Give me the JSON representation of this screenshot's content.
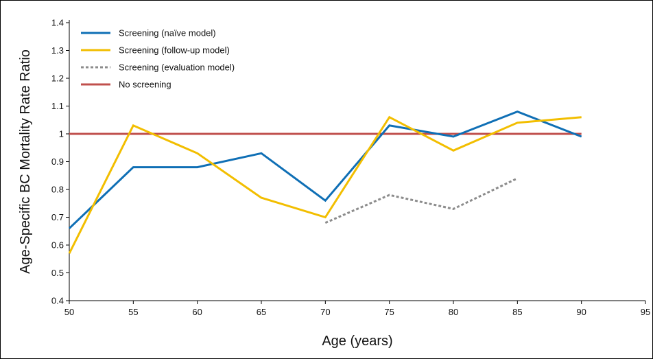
{
  "chart_data": {
    "type": "line",
    "title": "",
    "xlabel": "Age (years)",
    "ylabel": "Age-Specific BC Mortality Rate Ratio",
    "xlim": [
      50,
      95
    ],
    "ylim": [
      0.4,
      1.4
    ],
    "xticks": [
      50,
      55,
      60,
      65,
      70,
      75,
      80,
      85,
      90,
      95
    ],
    "xtick_labels": [
      "50",
      "55",
      "60",
      "65",
      "70",
      "75",
      "80",
      "85",
      "90",
      "95"
    ],
    "yticks": [
      0.4,
      0.5,
      0.6,
      0.7,
      0.8,
      0.9,
      1,
      1.1,
      1.2,
      1.3,
      1.4
    ],
    "ytick_labels": [
      "0.4",
      "0.5",
      "0.6",
      "0.7",
      "0.8",
      "0.9",
      "1",
      "1.1",
      "1.2",
      "1.3",
      "1.4"
    ],
    "grid": false,
    "legend_position": "top-left",
    "series": [
      {
        "name": "Screening (naïve model)",
        "color": "#0f6fb5",
        "style": "solid",
        "x": [
          50,
          55,
          60,
          65,
          70,
          75,
          80,
          85,
          90
        ],
        "y": [
          0.66,
          0.88,
          0.88,
          0.93,
          0.76,
          1.03,
          0.99,
          1.08,
          0.99
        ]
      },
      {
        "name": "Screening (follow-up model)",
        "color": "#f2be00",
        "style": "solid",
        "x": [
          50,
          55,
          60,
          65,
          70,
          75,
          80,
          85,
          90
        ],
        "y": [
          0.57,
          1.03,
          0.93,
          0.77,
          0.7,
          1.06,
          0.94,
          1.04,
          1.06
        ]
      },
      {
        "name": "Screening (evaluation model)",
        "color": "#8c8c8c",
        "style": "dotted",
        "x": [
          70,
          75,
          80,
          85
        ],
        "y": [
          0.68,
          0.78,
          0.73,
          0.84
        ]
      },
      {
        "name": "No screening",
        "color": "#c0504d",
        "style": "solid",
        "x": [
          50,
          90
        ],
        "y": [
          1.0,
          1.0
        ]
      }
    ]
  }
}
